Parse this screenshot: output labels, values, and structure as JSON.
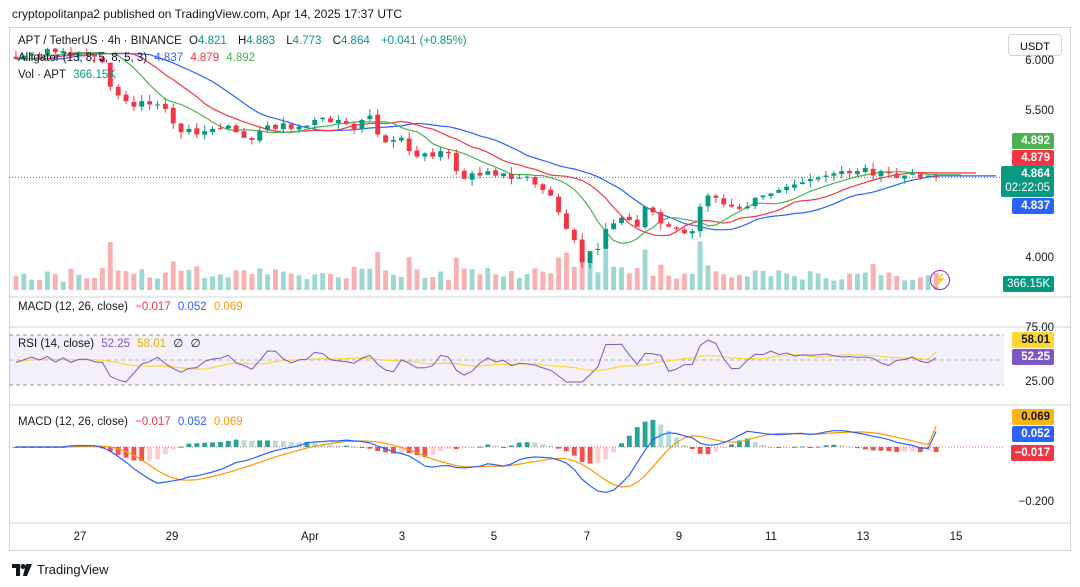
{
  "header": {
    "published_text": "cryptopolitanpa2 published on TradingView.com, Apr 14, 2025 17:37 UTC"
  },
  "currency_button": "USDT",
  "legend_main": {
    "symbol": "APT / TetherUS · 4h · BINANCE",
    "open_label": "O",
    "open": "4.821",
    "high_label": "H",
    "high": "4.883",
    "low_label": "L",
    "low": "4.773",
    "close_label": "C",
    "close": "4.864",
    "change": "+0.041 (+0.85%)"
  },
  "legend_alligator": {
    "name": "Alligator (13, 8, 5, 8, 5, 3)",
    "jaw": "4.837",
    "teeth": "4.879",
    "lips": "4.892"
  },
  "legend_vol": {
    "name": "Vol · APT",
    "value": "366.15K"
  },
  "legend_macd_top": {
    "name": "MACD (12, 26, close)",
    "hist": "−0.017",
    "macd": "0.052",
    "signal": "0.069"
  },
  "legend_rsi": {
    "name": "RSI (14, close)",
    "rsi": "52.25",
    "ma": "58.01",
    "extra1": "∅",
    "extra2": "∅"
  },
  "legend_macd": {
    "name": "MACD (12, 26, close)",
    "hist": "−0.017",
    "macd": "0.052",
    "signal": "0.069"
  },
  "price_axis": {
    "labels": [
      "6.000",
      "5.500",
      "4.000"
    ]
  },
  "price_tags": {
    "lips": "4.892",
    "teeth": "4.879",
    "last": "4.864",
    "countdown": "02:22:05",
    "jaw": "4.837",
    "volume": "366.15K"
  },
  "rsi_axis": {
    "top": "75.00",
    "ma": "58.01",
    "rsi": "52.25",
    "bottom": "25.00"
  },
  "macd_axis": {
    "signal": "0.069",
    "macd": "0.052",
    "hist": "−0.017",
    "low": "−0.200"
  },
  "x_axis": {
    "labels": [
      "27",
      "29",
      "Apr",
      "3",
      "5",
      "7",
      "9",
      "11",
      "13",
      "15"
    ]
  },
  "footer": {
    "brand": "TradingView"
  },
  "colors": {
    "up": "#089981",
    "down": "#f23645",
    "jaw": "#2962ff",
    "teeth": "#f23645",
    "lips": "#4caf50",
    "rsi": "#7e57c2",
    "rsi_ma": "#fdd835",
    "macd": "#2962ff",
    "signal": "#ff9800"
  },
  "chart_data": {
    "type": "candlestick",
    "symbol": "APT / TetherUS",
    "interval": "4h",
    "x_ticks": [
      "27",
      "29",
      "Apr",
      "3",
      "5",
      "7",
      "9",
      "11",
      "13",
      "15"
    ],
    "price_range": [
      3.85,
      6.1
    ],
    "candle_closes_approx": [
      5.93,
      5.96,
      5.98,
      5.97,
      6.02,
      5.99,
      6.0,
      5.96,
      5.98,
      5.97,
      5.95,
      5.9,
      5.68,
      5.6,
      5.55,
      5.5,
      5.55,
      5.52,
      5.52,
      5.48,
      5.35,
      5.27,
      5.3,
      5.25,
      5.28,
      5.3,
      5.3,
      5.33,
      5.27,
      5.22,
      5.2,
      5.28,
      5.33,
      5.3,
      5.35,
      5.3,
      5.32,
      5.33,
      5.38,
      5.4,
      5.36,
      5.38,
      5.35,
      5.3,
      5.38,
      5.42,
      5.25,
      5.18,
      5.2,
      5.22,
      5.1,
      5.05,
      5.08,
      5.05,
      5.1,
      5.08,
      4.92,
      4.85,
      4.9,
      4.88,
      4.92,
      4.88,
      4.9,
      4.85,
      4.86,
      4.87,
      4.8,
      4.75,
      4.7,
      4.55,
      4.4,
      4.3,
      4.1,
      4.2,
      4.22,
      4.4,
      4.45,
      4.5,
      4.48,
      4.42,
      4.6,
      4.55,
      4.45,
      4.42,
      4.4,
      4.36,
      4.38,
      4.6,
      4.7,
      4.68,
      4.62,
      4.6,
      4.58,
      4.6,
      4.68,
      4.7,
      4.72,
      4.75,
      4.78,
      4.8,
      4.82,
      4.85,
      4.86,
      4.88,
      4.9,
      4.92,
      4.9,
      4.92,
      4.95,
      4.88,
      4.92,
      4.9,
      4.86,
      4.88,
      4.9,
      4.86,
      4.88,
      4.864
    ],
    "alligator": {
      "jaw_last": 4.837,
      "teeth_last": 4.879,
      "lips_last": 4.892
    },
    "volume_last": "366.15K",
    "rsi": {
      "range": [
        25,
        75
      ],
      "last": 52.25,
      "ma_last": 58.01
    },
    "macd": {
      "macd_last": 0.052,
      "signal_last": 0.069,
      "hist_last": -0.017,
      "axis_low": -0.2
    }
  }
}
